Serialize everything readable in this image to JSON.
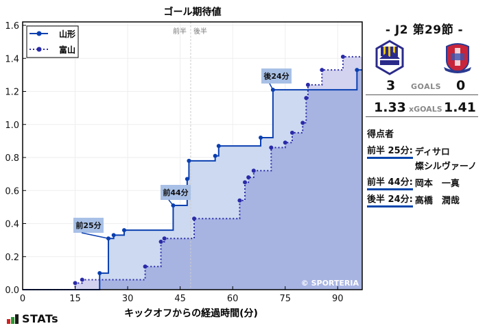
{
  "chart_data": {
    "type": "line",
    "title": "ゴール期待値",
    "xlabel": "キックオフからの経過時間(分)",
    "ylabel": "",
    "xlim": [
      0,
      97
    ],
    "ylim": [
      0,
      1.62
    ],
    "xticks": [
      0,
      15,
      30,
      45,
      60,
      75,
      90
    ],
    "yticks": [
      0.0,
      0.2,
      0.4,
      0.6,
      0.8,
      1.0,
      1.2,
      1.4,
      1.6
    ],
    "grid": true,
    "legend_position": "upper left",
    "halftime_line_x": 48,
    "halftime_labels": [
      "前半",
      "後半"
    ],
    "watermark": "© SPORTERIA",
    "series": [
      {
        "name": "山形",
        "style": "solid-step",
        "color": "#0a3fb0",
        "fill": "#ccd9f0",
        "points": [
          [
            0,
            0
          ],
          [
            22,
            0.1
          ],
          [
            24.5,
            0.31
          ],
          [
            26,
            0.33
          ],
          [
            29,
            0.36
          ],
          [
            43,
            0.51
          ],
          [
            47,
            0.67
          ],
          [
            47.5,
            0.78
          ],
          [
            55,
            0.81
          ],
          [
            56,
            0.87
          ],
          [
            68,
            0.92
          ],
          [
            71.5,
            1.21
          ],
          [
            95.5,
            1.33
          ],
          [
            97,
            1.33
          ]
        ]
      },
      {
        "name": "富山",
        "style": "dotted-step",
        "color": "#2a2aa8",
        "fill": "#a7b4e2",
        "points": [
          [
            15,
            0.04
          ],
          [
            17,
            0.06
          ],
          [
            35,
            0.14
          ],
          [
            39.5,
            0.29
          ],
          [
            40.5,
            0.31
          ],
          [
            49,
            0.43
          ],
          [
            62,
            0.54
          ],
          [
            63.5,
            0.65
          ],
          [
            64.5,
            0.68
          ],
          [
            66,
            0.72
          ],
          [
            71,
            0.86
          ],
          [
            75,
            0.89
          ],
          [
            77,
            0.95
          ],
          [
            80,
            1.01
          ],
          [
            81,
            1.16
          ],
          [
            81.5,
            1.24
          ],
          [
            85.5,
            1.33
          ],
          [
            91.5,
            1.41
          ],
          [
            97,
            1.41
          ]
        ]
      }
    ],
    "annotations": [
      {
        "label": "前25分",
        "x": 24.5,
        "y": 0.31,
        "box_x": 74,
        "box_y": 318
      },
      {
        "label": "前44分",
        "x": 43,
        "y": 0.51,
        "box_x": 201,
        "box_y": 270
      },
      {
        "label": "後24分",
        "x": 71.5,
        "y": 1.21,
        "box_x": 348,
        "box_y": 100
      }
    ]
  },
  "match": {
    "round": "- J2 第29節 -",
    "home": {
      "name": "山形",
      "logo": "montedio-yamagata-crest-icon",
      "goals": "3",
      "xg": "1.33"
    },
    "away": {
      "name": "富山",
      "logo": "kataller-toyama-crest-icon",
      "goals": "0",
      "xg": "1.41"
    },
    "goals_label": "GOALS",
    "xg_label": "xGOALS"
  },
  "scorers": {
    "header": "得点者",
    "items": [
      {
        "time": "前半 25分:",
        "name": "ディサロ\n燦シルヴァーノ"
      },
      {
        "time": "前半 44分:",
        "name": "岡本　一真"
      },
      {
        "time": "後半 24分:",
        "name": "高橋　潤哉"
      }
    ]
  },
  "brand": {
    "label": "STATs",
    "bar_colors": [
      "#d42020",
      "#2a9a30",
      "#1a1a1a"
    ]
  }
}
